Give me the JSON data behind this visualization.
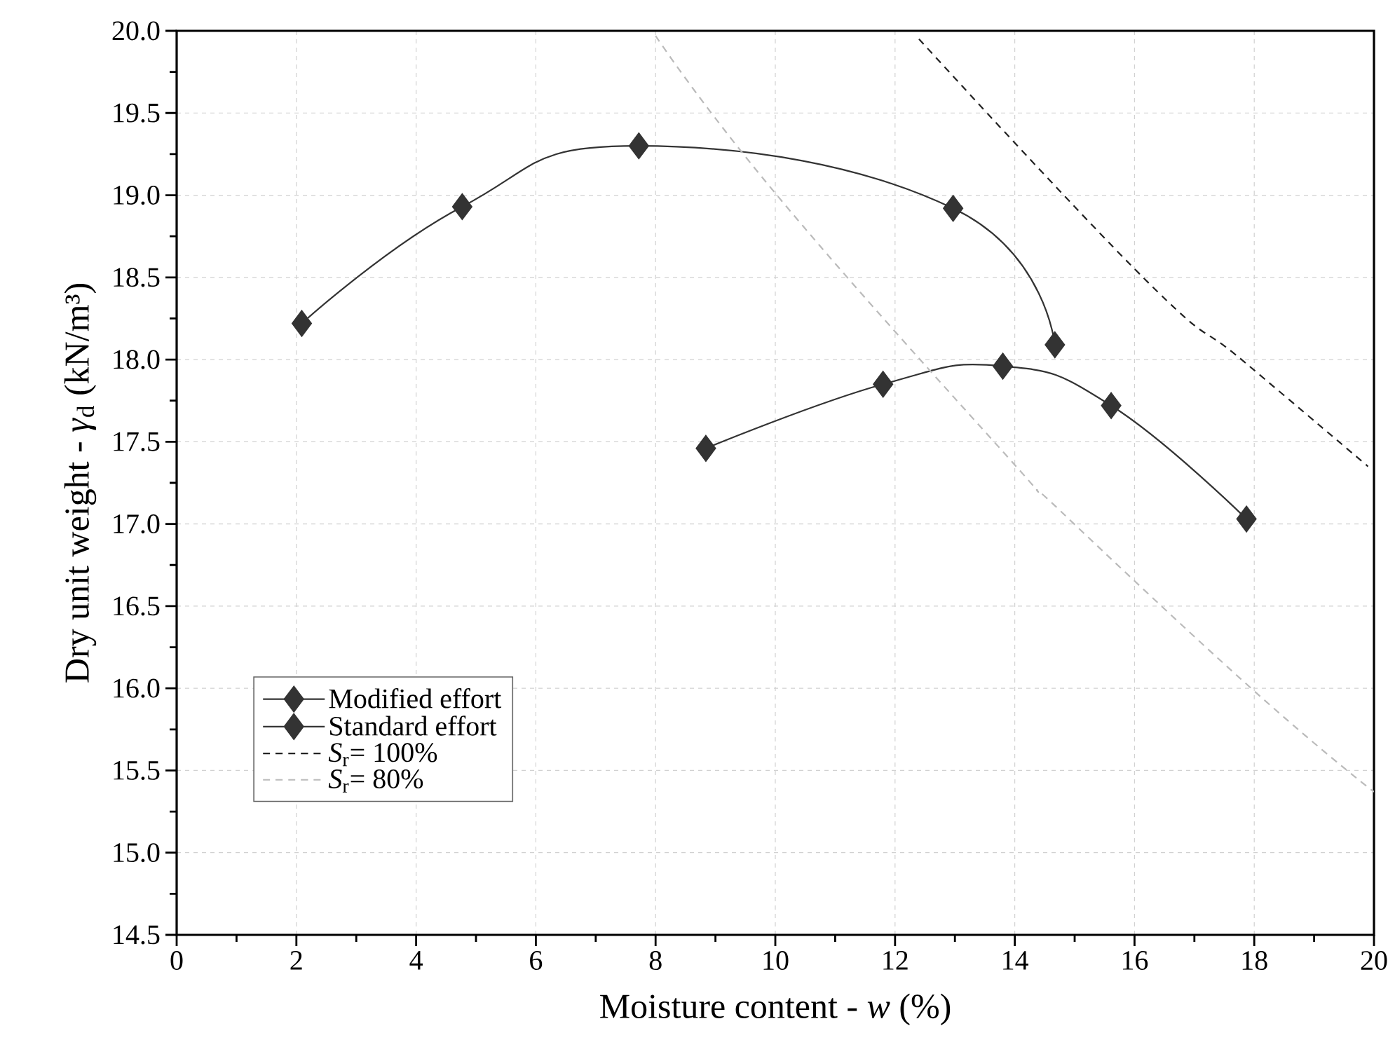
{
  "chart_data": {
    "type": "line",
    "xlabel": "Moisture content - *w* (%)",
    "ylabel": "Dry unit weight - *γ*$_{d}$ (kN/m³)",
    "xlim": [
      0,
      20
    ],
    "ylim": [
      14.5,
      20.0
    ],
    "xticks": [
      0,
      2,
      4,
      6,
      8,
      10,
      12,
      14,
      16,
      18,
      20
    ],
    "yticks": [
      {
        "value": 14.5,
        "label": "14.5"
      },
      {
        "value": 15,
        "label": "15.0"
      },
      {
        "value": 15.5,
        "label": "15.5"
      },
      {
        "value": 16,
        "label": "16.0"
      },
      {
        "value": 16.5,
        "label": "16.5"
      },
      {
        "value": 17,
        "label": "17.0"
      },
      {
        "value": 17.5,
        "label": "17.5"
      },
      {
        "value": 18,
        "label": "18.0"
      },
      {
        "value": 18.5,
        "label": "18.5"
      },
      {
        "value": 19,
        "label": "19.0"
      },
      {
        "value": 19.5,
        "label": "19.5"
      },
      {
        "value": 20,
        "label": "20.0"
      }
    ],
    "grid": true,
    "legend": "bottom left",
    "series": [
      {
        "name": "Modified effort",
        "color": "#333333",
        "marker": "diamond",
        "line_style": "solid",
        "x": [
          2.09,
          4.77,
          7.72,
          12.97,
          14.67
        ],
        "values": [
          18.22,
          18.93,
          19.3,
          18.92,
          18.09
        ]
      },
      {
        "name": "Standard effort",
        "color": "#333333",
        "marker": "diamond",
        "line_style": "solid",
        "x": [
          8.84,
          11.8,
          13.8,
          15.61,
          17.87
        ],
        "values": [
          17.46,
          17.85,
          17.96,
          17.72,
          17.03
        ]
      },
      {
        "name": "*S*$_{r}$= 100%",
        "color": "#222222",
        "marker": "none",
        "line_style": "dashed",
        "x": [
          12.4,
          16.17,
          17.82,
          19.9
        ],
        "values": [
          19.95,
          18.49,
          17.99,
          17.35
        ]
      },
      {
        "name": "*S*$_{r}$= 80%",
        "color": "#bbbbbb",
        "marker": "none",
        "line_style": "dashed",
        "x": [
          8.0,
          10.05,
          13.9,
          14.76,
          17.98,
          20.0
        ],
        "values": [
          19.97,
          18.99,
          17.4,
          17.08,
          15.99,
          15.37
        ]
      }
    ]
  }
}
